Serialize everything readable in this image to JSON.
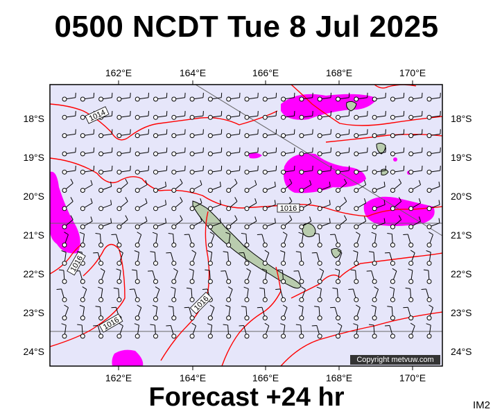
{
  "title": "0500 NCDT Tue 8 Jul 2025",
  "subtitle": "Forecast +24 hr",
  "image_code": "IM2",
  "copyright": "Copyright metvuw.com",
  "isobar_label": "1016",
  "isobar_label_2": "1014",
  "lon_labels": [
    "162°E",
    "164°E",
    "166°E",
    "168°E",
    "170°E"
  ],
  "lat_labels": [
    "18°S",
    "19°S",
    "20°S",
    "21°S",
    "22°S",
    "23°S",
    "24°S"
  ],
  "colors": {
    "ocean": "#e6e6fa",
    "rain": "#ff00ff",
    "isobar": "#ff0000",
    "land": "#b9ccae"
  },
  "map_data": {
    "type": "weather-map",
    "lon_range": [
      160.2,
      170.8
    ],
    "lat_range": [
      -17.0,
      -24.3
    ],
    "rain_areas": [
      {
        "lon": 168.0,
        "lat": -17.3
      },
      {
        "lon": 166.9,
        "lat": -17.7
      },
      {
        "lon": 167.4,
        "lat": -19.8
      },
      {
        "lon": 169.8,
        "lat": -20.5
      },
      {
        "lon": 160.5,
        "lat": -20.8
      },
      {
        "lon": 162.2,
        "lat": -24.4
      }
    ]
  }
}
